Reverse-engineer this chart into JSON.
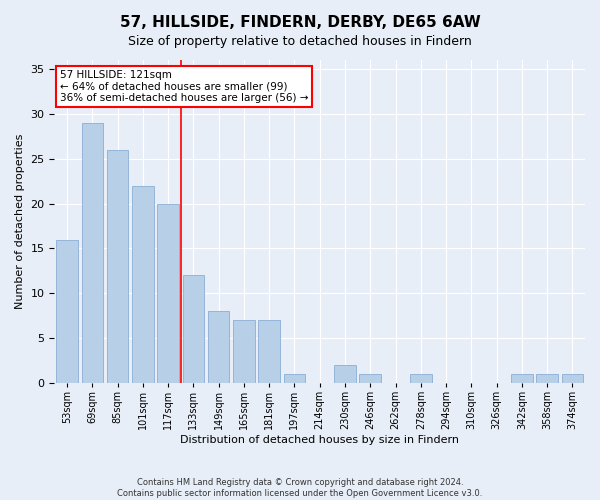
{
  "title": "57, HILLSIDE, FINDERN, DERBY, DE65 6AW",
  "subtitle": "Size of property relative to detached houses in Findern",
  "xlabel": "Distribution of detached houses by size in Findern",
  "ylabel": "Number of detached properties",
  "bar_labels": [
    "53sqm",
    "69sqm",
    "85sqm",
    "101sqm",
    "117sqm",
    "133sqm",
    "149sqm",
    "165sqm",
    "181sqm",
    "197sqm",
    "214sqm",
    "230sqm",
    "246sqm",
    "262sqm",
    "278sqm",
    "294sqm",
    "310sqm",
    "326sqm",
    "342sqm",
    "358sqm",
    "374sqm"
  ],
  "bar_values": [
    16,
    29,
    26,
    22,
    20,
    12,
    8,
    7,
    7,
    1,
    0,
    2,
    1,
    0,
    1,
    0,
    0,
    0,
    1,
    1,
    1
  ],
  "bar_color": "#b8cfe8",
  "bar_edge_color": "#8aafd4",
  "vline_x": 4.5,
  "vline_color": "red",
  "annotation_text": "57 HILLSIDE: 121sqm\n← 64% of detached houses are smaller (99)\n36% of semi-detached houses are larger (56) →",
  "annotation_box_color": "white",
  "annotation_box_edge": "red",
  "ylim": [
    0,
    36
  ],
  "background_color": "#e8eef7",
  "plot_background": "#e8eef7",
  "footer1": "Contains HM Land Registry data © Crown copyright and database right 2024.",
  "footer2": "Contains public sector information licensed under the Open Government Licence v3.0.",
  "grid_color": "white",
  "title_fontsize": 11,
  "yticks": [
    0,
    5,
    10,
    15,
    20,
    25,
    30,
    35
  ]
}
